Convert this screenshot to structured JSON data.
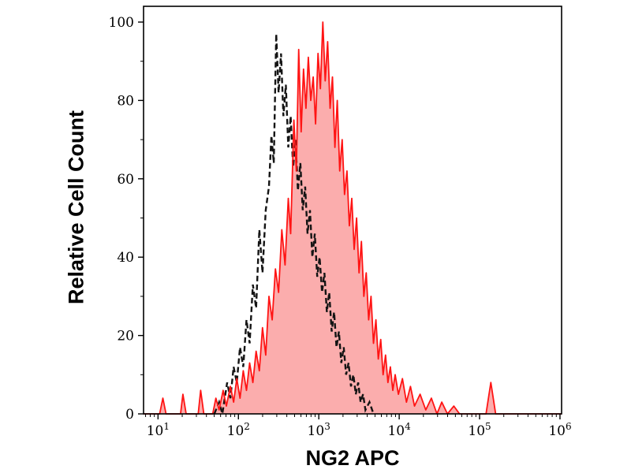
{
  "chart_data": {
    "type": "line",
    "subtype": "flow-cytometry-overlay-histogram",
    "title": "",
    "xlabel": "NG2 APC",
    "ylabel": "Relative Cell Count",
    "x_scale": "log",
    "xlim_log": [
      0.82,
      6.02
    ],
    "ylim": [
      0,
      100
    ],
    "y_ticks": [
      0,
      20,
      40,
      60,
      80,
      100
    ],
    "y_tick_labels": [
      "0",
      "20",
      "40",
      "60",
      "80",
      "100"
    ],
    "y_minor_step": 10,
    "x_tick_base": "10",
    "x_tick_exponents": [
      1,
      2,
      3,
      4,
      5,
      6
    ],
    "grid": false,
    "legend": "none",
    "frame_color": "#000000",
    "series": [
      {
        "name": "stained-sample-red-filled",
        "style": "solid",
        "color": "#ff1414",
        "fill": "#fbadad",
        "stroke_width": 1.8,
        "points_logx_y": [
          [
            0.82,
            0
          ],
          [
            1.02,
            0
          ],
          [
            1.06,
            4
          ],
          [
            1.1,
            0
          ],
          [
            1.28,
            0
          ],
          [
            1.31,
            5
          ],
          [
            1.35,
            0
          ],
          [
            1.5,
            0
          ],
          [
            1.53,
            6
          ],
          [
            1.57,
            0
          ],
          [
            1.68,
            0
          ],
          [
            1.72,
            4
          ],
          [
            1.76,
            1
          ],
          [
            1.81,
            6
          ],
          [
            1.85,
            2
          ],
          [
            1.9,
            7
          ],
          [
            1.94,
            3
          ],
          [
            1.98,
            9
          ],
          [
            2.02,
            4
          ],
          [
            2.06,
            11
          ],
          [
            2.1,
            6
          ],
          [
            2.14,
            13
          ],
          [
            2.18,
            8
          ],
          [
            2.22,
            16
          ],
          [
            2.26,
            11
          ],
          [
            2.3,
            22
          ],
          [
            2.34,
            15
          ],
          [
            2.38,
            30
          ],
          [
            2.42,
            24
          ],
          [
            2.46,
            37
          ],
          [
            2.5,
            31
          ],
          [
            2.54,
            47
          ],
          [
            2.58,
            38
          ],
          [
            2.62,
            55
          ],
          [
            2.65,
            46
          ],
          [
            2.69,
            75
          ],
          [
            2.72,
            62
          ],
          [
            2.75,
            93
          ],
          [
            2.78,
            72
          ],
          [
            2.81,
            88
          ],
          [
            2.84,
            78
          ],
          [
            2.87,
            91
          ],
          [
            2.9,
            80
          ],
          [
            2.93,
            86
          ],
          [
            2.96,
            74
          ],
          [
            2.99,
            92
          ],
          [
            3.02,
            83
          ],
          [
            3.05,
            100
          ],
          [
            3.08,
            85
          ],
          [
            3.11,
            95
          ],
          [
            3.14,
            78
          ],
          [
            3.17,
            86
          ],
          [
            3.2,
            68
          ],
          [
            3.23,
            80
          ],
          [
            3.26,
            62
          ],
          [
            3.29,
            70
          ],
          [
            3.32,
            56
          ],
          [
            3.35,
            62
          ],
          [
            3.38,
            48
          ],
          [
            3.41,
            55
          ],
          [
            3.44,
            42
          ],
          [
            3.47,
            50
          ],
          [
            3.5,
            36
          ],
          [
            3.53,
            44
          ],
          [
            3.56,
            30
          ],
          [
            3.59,
            36
          ],
          [
            3.62,
            24
          ],
          [
            3.65,
            30
          ],
          [
            3.68,
            18
          ],
          [
            3.71,
            24
          ],
          [
            3.74,
            14
          ],
          [
            3.77,
            19
          ],
          [
            3.8,
            10
          ],
          [
            3.83,
            15
          ],
          [
            3.86,
            8
          ],
          [
            3.89,
            12
          ],
          [
            3.92,
            6
          ],
          [
            3.95,
            10
          ],
          [
            3.99,
            5
          ],
          [
            4.04,
            9
          ],
          [
            4.09,
            3
          ],
          [
            4.14,
            7
          ],
          [
            4.19,
            2
          ],
          [
            4.26,
            5
          ],
          [
            4.33,
            1
          ],
          [
            4.4,
            4
          ],
          [
            4.47,
            0
          ],
          [
            4.53,
            3
          ],
          [
            4.6,
            0
          ],
          [
            4.68,
            2
          ],
          [
            4.75,
            0
          ],
          [
            5.08,
            0
          ],
          [
            5.14,
            8
          ],
          [
            5.2,
            0
          ],
          [
            6.02,
            0
          ]
        ]
      },
      {
        "name": "isotype-control-black-dashed",
        "style": "dashed",
        "dash": "7 4",
        "color": "#141414",
        "fill": "none",
        "stroke_width": 2.4,
        "points_logx_y": [
          [
            1.7,
            0
          ],
          [
            1.76,
            3
          ],
          [
            1.8,
            0
          ],
          [
            1.86,
            8
          ],
          [
            1.9,
            4
          ],
          [
            1.94,
            12
          ],
          [
            1.98,
            8
          ],
          [
            2.02,
            17
          ],
          [
            2.06,
            12
          ],
          [
            2.1,
            24
          ],
          [
            2.14,
            18
          ],
          [
            2.18,
            33
          ],
          [
            2.22,
            27
          ],
          [
            2.26,
            47
          ],
          [
            2.3,
            36
          ],
          [
            2.34,
            52
          ],
          [
            2.38,
            58
          ],
          [
            2.41,
            71
          ],
          [
            2.44,
            64
          ],
          [
            2.47,
            97
          ],
          [
            2.5,
            82
          ],
          [
            2.53,
            92
          ],
          [
            2.56,
            76
          ],
          [
            2.59,
            84
          ],
          [
            2.62,
            68
          ],
          [
            2.65,
            76
          ],
          [
            2.68,
            63
          ],
          [
            2.71,
            70
          ],
          [
            2.74,
            57
          ],
          [
            2.77,
            64
          ],
          [
            2.8,
            52
          ],
          [
            2.83,
            58
          ],
          [
            2.86,
            46
          ],
          [
            2.89,
            52
          ],
          [
            2.92,
            40
          ],
          [
            2.95,
            46
          ],
          [
            2.98,
            35
          ],
          [
            3.01,
            40
          ],
          [
            3.04,
            31
          ],
          [
            3.07,
            36
          ],
          [
            3.1,
            26
          ],
          [
            3.13,
            31
          ],
          [
            3.16,
            21
          ],
          [
            3.19,
            26
          ],
          [
            3.22,
            17
          ],
          [
            3.25,
            21
          ],
          [
            3.28,
            13
          ],
          [
            3.31,
            17
          ],
          [
            3.34,
            10
          ],
          [
            3.37,
            13
          ],
          [
            3.4,
            7
          ],
          [
            3.43,
            10
          ],
          [
            3.46,
            5
          ],
          [
            3.49,
            8
          ],
          [
            3.52,
            3
          ],
          [
            3.55,
            5
          ],
          [
            3.58,
            1
          ],
          [
            3.63,
            3
          ],
          [
            3.68,
            0
          ]
        ]
      }
    ]
  }
}
